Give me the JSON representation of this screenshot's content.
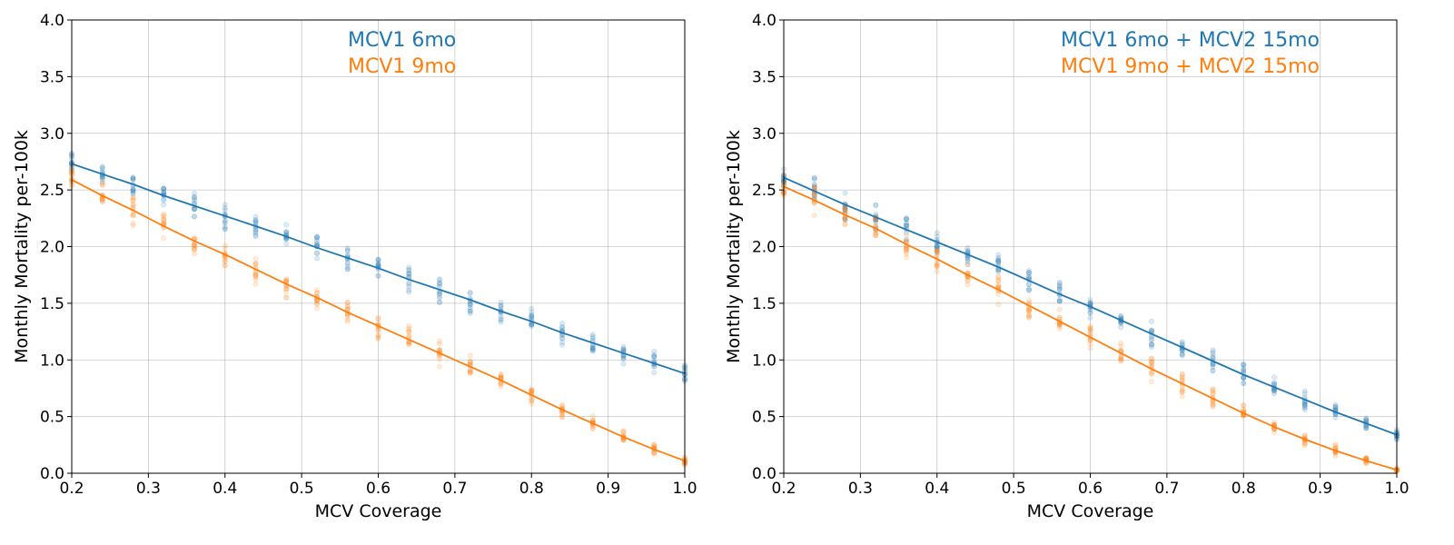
{
  "colors": {
    "series_a": "#1f77b4",
    "series_b": "#ff7f0e",
    "grid": "#b0b0b0",
    "axis": "#000000"
  },
  "chart_data": [
    {
      "type": "scatter",
      "title": "",
      "xlabel": "MCV Coverage",
      "ylabel": "Monthly Mortality per-100k",
      "xlim": [
        0.2,
        1.0
      ],
      "ylim": [
        0.0,
        4.0
      ],
      "grid": true,
      "legend_position": "top-center",
      "xticks": [
        "0.2",
        "0.3",
        "0.4",
        "0.5",
        "0.6",
        "0.7",
        "0.8",
        "0.9",
        "1.0"
      ],
      "yticks": [
        "0.0",
        "0.5",
        "1.0",
        "1.5",
        "2.0",
        "2.5",
        "3.0",
        "3.5",
        "4.0"
      ],
      "x": [
        0.2,
        0.24,
        0.28,
        0.32,
        0.36,
        0.4,
        0.44,
        0.48,
        0.52,
        0.56,
        0.6,
        0.64,
        0.68,
        0.72,
        0.76,
        0.8,
        0.84,
        0.88,
        0.92,
        0.96,
        1.0
      ],
      "series": [
        {
          "name": "MCV1  6mo",
          "color": "#1f77b4",
          "fit": [
            2.73,
            2.64,
            2.55,
            2.45,
            2.36,
            2.27,
            2.18,
            2.09,
            1.99,
            1.9,
            1.81,
            1.71,
            1.62,
            1.53,
            1.43,
            1.34,
            1.24,
            1.15,
            1.06,
            0.97,
            0.88
          ],
          "spread": [
            0.12,
            0.15,
            0.14,
            0.12,
            0.14,
            0.15,
            0.15,
            0.12,
            0.14,
            0.13,
            0.12,
            0.14,
            0.15,
            0.14,
            0.11,
            0.13,
            0.13,
            0.12,
            0.12,
            0.12,
            0.1
          ]
        },
        {
          "name": "MCV1  9mo",
          "color": "#ff7f0e",
          "fit": [
            2.59,
            2.45,
            2.32,
            2.18,
            2.05,
            1.93,
            1.8,
            1.67,
            1.55,
            1.42,
            1.3,
            1.18,
            1.06,
            0.94,
            0.82,
            0.69,
            0.56,
            0.44,
            0.32,
            0.21,
            0.11
          ],
          "spread": [
            0.12,
            0.15,
            0.17,
            0.14,
            0.15,
            0.15,
            0.15,
            0.13,
            0.12,
            0.12,
            0.12,
            0.13,
            0.14,
            0.13,
            0.12,
            0.1,
            0.08,
            0.07,
            0.07,
            0.06,
            0.04
          ]
        }
      ]
    },
    {
      "type": "scatter",
      "title": "",
      "xlabel": "MCV Coverage",
      "ylabel": "Monthly Mortality per-100k",
      "xlim": [
        0.2,
        1.0
      ],
      "ylim": [
        0.0,
        4.0
      ],
      "grid": true,
      "legend_position": "top-right",
      "xticks": [
        "0.2",
        "0.3",
        "0.4",
        "0.5",
        "0.6",
        "0.7",
        "0.8",
        "0.9",
        "1.0"
      ],
      "yticks": [
        "0.0",
        "0.5",
        "1.0",
        "1.5",
        "2.0",
        "2.5",
        "3.0",
        "3.5",
        "4.0"
      ],
      "x": [
        0.2,
        0.24,
        0.28,
        0.32,
        0.36,
        0.4,
        0.44,
        0.48,
        0.52,
        0.56,
        0.6,
        0.64,
        0.68,
        0.72,
        0.76,
        0.8,
        0.84,
        0.88,
        0.92,
        0.96,
        1.0
      ],
      "series": [
        {
          "name": "MCV1  6mo + MCV2 15mo",
          "color": "#1f77b4",
          "fit": [
            2.61,
            2.49,
            2.37,
            2.26,
            2.15,
            2.04,
            1.93,
            1.82,
            1.7,
            1.58,
            1.47,
            1.35,
            1.23,
            1.11,
            0.99,
            0.87,
            0.76,
            0.65,
            0.54,
            0.44,
            0.34
          ],
          "spread": [
            0.12,
            0.15,
            0.15,
            0.13,
            0.13,
            0.14,
            0.12,
            0.15,
            0.13,
            0.13,
            0.1,
            0.12,
            0.13,
            0.14,
            0.12,
            0.12,
            0.1,
            0.1,
            0.08,
            0.07,
            0.06
          ]
        },
        {
          "name": "MCV1  9mo + MCV2 15mo",
          "color": "#ff7f0e",
          "fit": [
            2.53,
            2.41,
            2.28,
            2.16,
            2.02,
            1.89,
            1.75,
            1.62,
            1.48,
            1.34,
            1.2,
            1.06,
            0.92,
            0.79,
            0.66,
            0.53,
            0.41,
            0.3,
            0.2,
            0.11,
            0.03
          ],
          "spread": [
            0.12,
            0.15,
            0.15,
            0.13,
            0.15,
            0.14,
            0.15,
            0.15,
            0.14,
            0.13,
            0.13,
            0.12,
            0.12,
            0.12,
            0.1,
            0.09,
            0.08,
            0.06,
            0.06,
            0.04,
            0.02
          ]
        }
      ]
    }
  ]
}
